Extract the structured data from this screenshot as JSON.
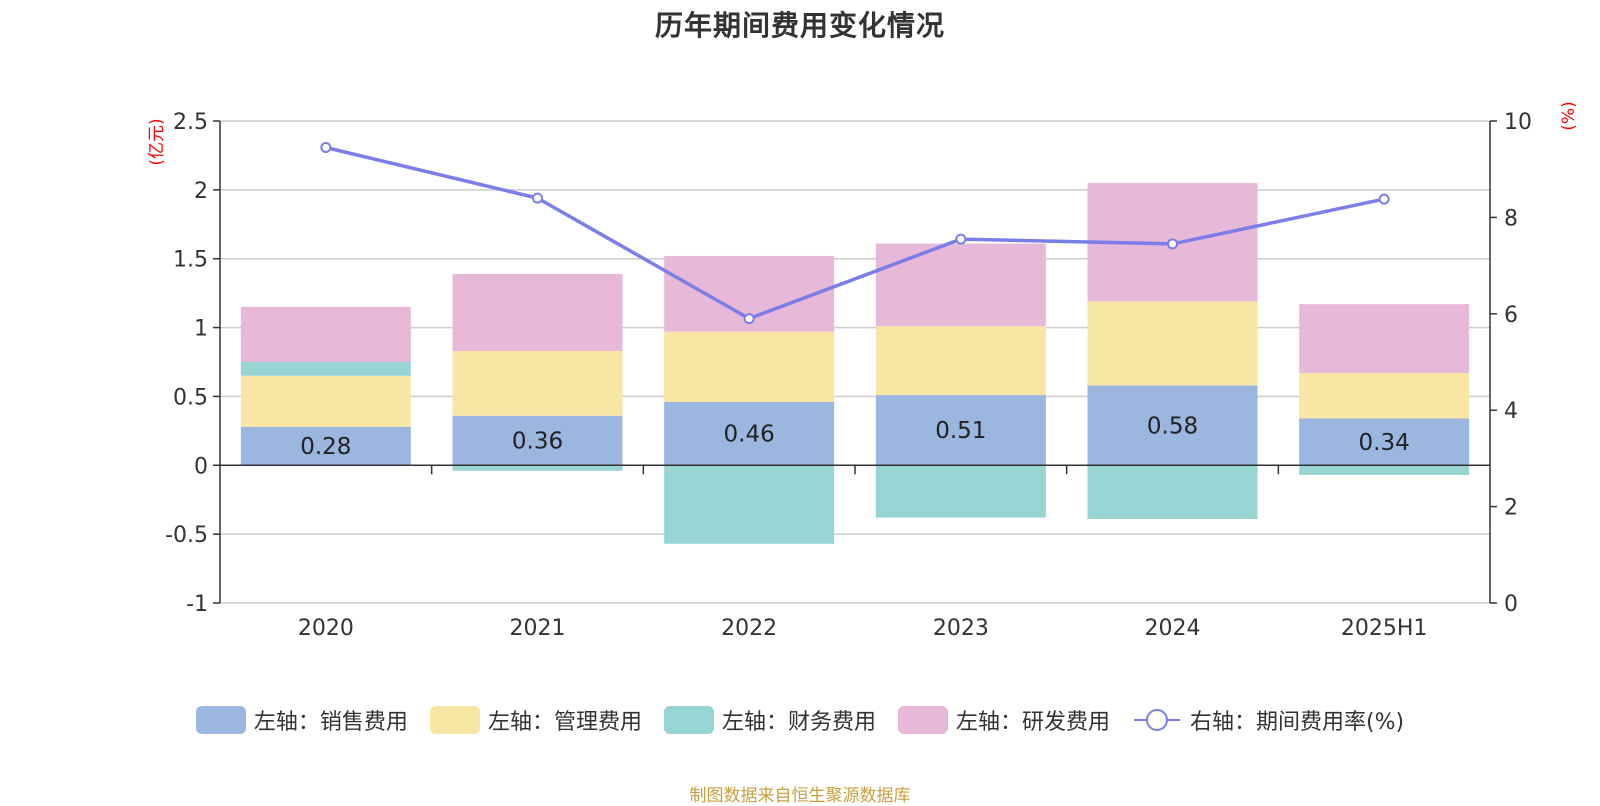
{
  "chart_data": {
    "type": "bar",
    "title": "历年期间费用变化情况",
    "categories": [
      "2020",
      "2021",
      "2022",
      "2023",
      "2024",
      "2025H1"
    ],
    "stacked": true,
    "y_left": {
      "unit": "(亿元)",
      "ylim": [
        -1,
        2.5
      ],
      "ticks": [
        "2.5",
        "2",
        "1.5",
        "1",
        "0.5",
        "0",
        "-0.5",
        "-1"
      ],
      "tick_values": [
        2.5,
        2,
        1.5,
        1,
        0.5,
        0,
        -0.5,
        -1
      ]
    },
    "y_right": {
      "unit": "(%)",
      "ylim": [
        0,
        10
      ],
      "ticks": [
        "10",
        "8",
        "6",
        "4",
        "2",
        "0"
      ],
      "tick_values": [
        10,
        8,
        6,
        4,
        2,
        0
      ]
    },
    "series": [
      {
        "name": "左轴：销售费用",
        "axis": "left",
        "kind": "bar",
        "color": "#9bb7e0",
        "values": [
          0.28,
          0.36,
          0.46,
          0.51,
          0.58,
          0.34
        ],
        "labels": [
          "0.28",
          "0.36",
          "0.46",
          "0.51",
          "0.58",
          "0.34"
        ]
      },
      {
        "name": "左轴：管理费用",
        "axis": "left",
        "kind": "bar",
        "color": "#f8e6a4",
        "values": [
          0.37,
          0.47,
          0.51,
          0.5,
          0.61,
          0.33
        ]
      },
      {
        "name": "左轴：财务费用",
        "axis": "left",
        "kind": "bar",
        "color": "#97d4d4",
        "values": [
          0.1,
          -0.04,
          -0.57,
          -0.38,
          -0.39,
          -0.07
        ]
      },
      {
        "name": "左轴：研发费用",
        "axis": "left",
        "kind": "bar",
        "color": "#e8b8d9",
        "values": [
          0.4,
          0.56,
          0.55,
          0.6,
          0.86,
          0.5
        ]
      },
      {
        "name": "右轴：期间费用率(%)",
        "axis": "right",
        "kind": "line",
        "color": "#7b7ee8",
        "values": [
          9.45,
          8.4,
          5.9,
          7.55,
          7.45,
          8.38
        ]
      }
    ],
    "grid": true,
    "legend_position": "bottom"
  },
  "source_note": "制图数据来自恒生聚源数据库"
}
